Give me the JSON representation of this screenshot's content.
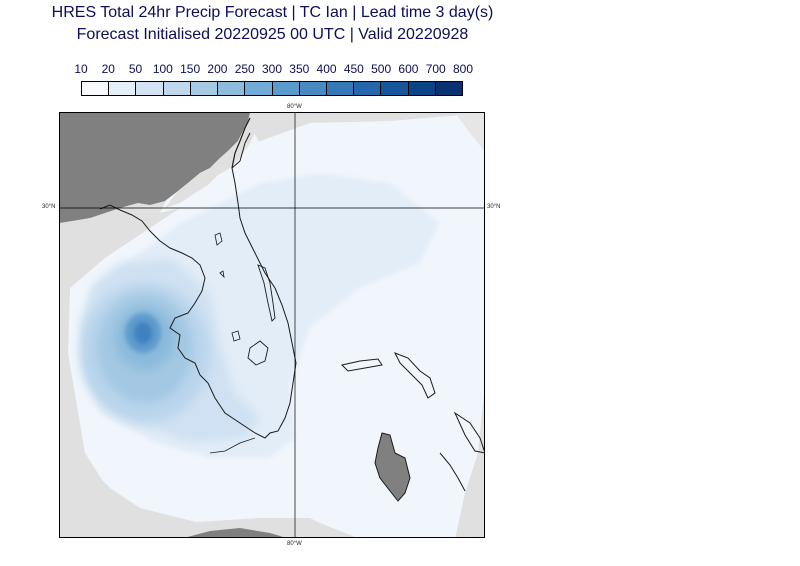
{
  "title": {
    "line1": "HRES Total 24hr Precip Forecast | TC Ian | Lead time 3 day(s)",
    "line2": "Forecast Initialised 20220925 00 UTC | Valid 20220928"
  },
  "colorbar": {
    "levels": [
      "10",
      "20",
      "50",
      "100",
      "150",
      "200",
      "250",
      "300",
      "350",
      "400",
      "450",
      "500",
      "600",
      "700",
      "800"
    ],
    "colors": [
      "#f7fbff",
      "#e5eff9",
      "#d3e3f3",
      "#bfd8ed",
      "#a6cbe4",
      "#8dbcdc",
      "#72abd5",
      "#5a9bcc",
      "#4889c2",
      "#3679b9",
      "#2566ac",
      "#16559c",
      "#0c4488",
      "#083370"
    ]
  },
  "map": {
    "longitude_label": "80°W",
    "latitude_label": "30°N",
    "land_color": "#808080",
    "no_data_color": "#e0e0e0",
    "coast_color": "#1a1a1a"
  }
}
